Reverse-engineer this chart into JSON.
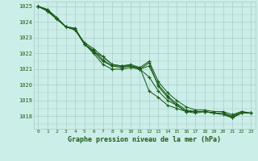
{
  "title": "Graphe pression niveau de la mer (hPa)",
  "background_color": "#cceee8",
  "grid_color": "#aacccc",
  "line_color": "#1a5c1a",
  "xlim": [
    -0.5,
    23.5
  ],
  "ylim": [
    1017.2,
    1025.3
  ],
  "yticks": [
    1018,
    1019,
    1020,
    1021,
    1022,
    1023,
    1024,
    1025
  ],
  "xticks": [
    0,
    1,
    2,
    3,
    4,
    5,
    6,
    7,
    8,
    9,
    10,
    11,
    12,
    13,
    14,
    15,
    16,
    17,
    18,
    19,
    20,
    21,
    22,
    23
  ],
  "series": [
    [
      1025.0,
      1024.7,
      1024.2,
      1023.7,
      1023.6,
      1022.6,
      1022.1,
      1021.8,
      1021.3,
      1021.2,
      1021.2,
      1021.1,
      1019.6,
      1019.2,
      1018.7,
      1018.5,
      1018.3,
      1018.3,
      1018.3,
      1018.2,
      1018.2,
      1018.0,
      1018.3,
      1018.2
    ],
    [
      1025.0,
      1024.7,
      1024.2,
      1023.7,
      1023.6,
      1022.6,
      1022.1,
      1021.5,
      1021.2,
      1021.1,
      1021.2,
      1021.0,
      1020.5,
      1019.6,
      1019.0,
      1018.7,
      1018.3,
      1018.2,
      1018.3,
      1018.2,
      1018.2,
      1017.9,
      1018.2,
      1018.2
    ],
    [
      1025.0,
      1024.7,
      1024.2,
      1023.7,
      1023.5,
      1022.6,
      1022.0,
      1021.3,
      1021.0,
      1021.0,
      1021.1,
      1021.0,
      1021.2,
      1020.0,
      1019.3,
      1018.8,
      1018.4,
      1018.3,
      1018.3,
      1018.2,
      1018.1,
      1017.9,
      1018.2,
      1018.2
    ],
    [
      1025.0,
      1024.8,
      1024.2,
      1023.7,
      1023.5,
      1022.6,
      1022.2,
      1021.6,
      1021.2,
      1021.2,
      1021.2,
      1021.0,
      1021.4,
      1019.9,
      1019.2,
      1018.7,
      1018.3,
      1018.3,
      1018.3,
      1018.2,
      1018.2,
      1018.0,
      1018.2,
      1018.2
    ],
    [
      1025.0,
      1024.8,
      1024.3,
      1023.7,
      1023.5,
      1022.7,
      1022.3,
      1021.8,
      1021.3,
      1021.2,
      1021.3,
      1021.1,
      1021.5,
      1020.2,
      1019.5,
      1019.0,
      1018.6,
      1018.4,
      1018.4,
      1018.3,
      1018.3,
      1018.1,
      1018.3,
      1018.2
    ]
  ]
}
